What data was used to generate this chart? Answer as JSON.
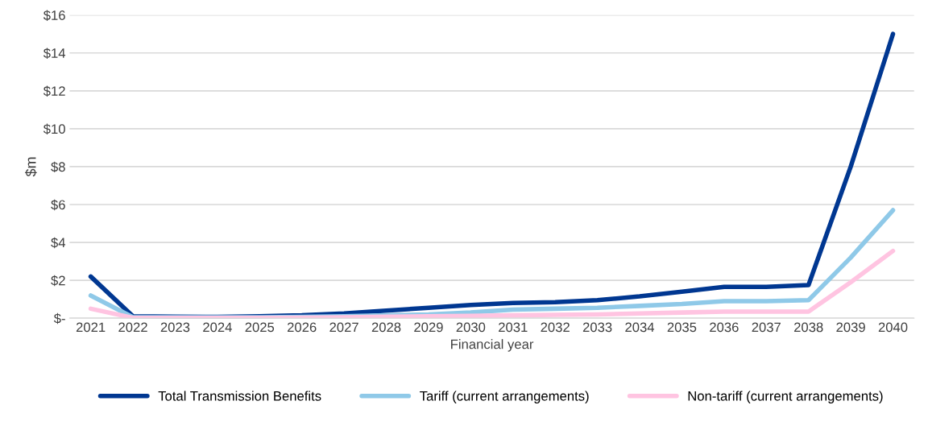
{
  "chart_data": {
    "type": "line",
    "xlabel": "Financial year",
    "ylabel": "$m",
    "categories": [
      "2021",
      "2022",
      "2023",
      "2024",
      "2025",
      "2026",
      "2027",
      "2028",
      "2029",
      "2030",
      "2031",
      "2032",
      "2033",
      "2034",
      "2035",
      "2036",
      "2037",
      "2038",
      "2039",
      "2040"
    ],
    "series": [
      {
        "name": "Total Transmission Benefits",
        "color": "#003791",
        "values": [
          2.2,
          0.1,
          0.08,
          0.07,
          0.1,
          0.15,
          0.25,
          0.4,
          0.55,
          0.7,
          0.8,
          0.85,
          0.95,
          1.15,
          1.4,
          1.65,
          1.65,
          1.75,
          8.0,
          15.0
        ]
      },
      {
        "name": "Tariff (current arrangements)",
        "color": "#8fc9e8",
        "values": [
          1.2,
          0.05,
          0.05,
          0.05,
          0.05,
          0.07,
          0.1,
          0.15,
          0.2,
          0.3,
          0.45,
          0.5,
          0.55,
          0.65,
          0.75,
          0.9,
          0.9,
          0.95,
          3.2,
          5.7
        ]
      },
      {
        "name": "Non-tariff (current arrangements)",
        "color": "#ffc4e1",
        "values": [
          0.5,
          0.02,
          0.02,
          0.02,
          0.02,
          0.03,
          0.05,
          0.08,
          0.1,
          0.12,
          0.15,
          0.18,
          0.2,
          0.25,
          0.3,
          0.35,
          0.35,
          0.35,
          1.9,
          3.55
        ]
      }
    ],
    "ylim": [
      0,
      16
    ],
    "yticks": [
      {
        "value": 0,
        "label": "$-"
      },
      {
        "value": 2,
        "label": "$2"
      },
      {
        "value": 4,
        "label": "$4"
      },
      {
        "value": 6,
        "label": "$6"
      },
      {
        "value": 8,
        "label": "$8"
      },
      {
        "value": 10,
        "label": "$10"
      },
      {
        "value": 12,
        "label": "$12"
      },
      {
        "value": 14,
        "label": "$14"
      },
      {
        "value": 16,
        "label": "$16"
      }
    ],
    "grid": "y",
    "legend": "bottom",
    "marker": "none",
    "line_style": "solid"
  }
}
